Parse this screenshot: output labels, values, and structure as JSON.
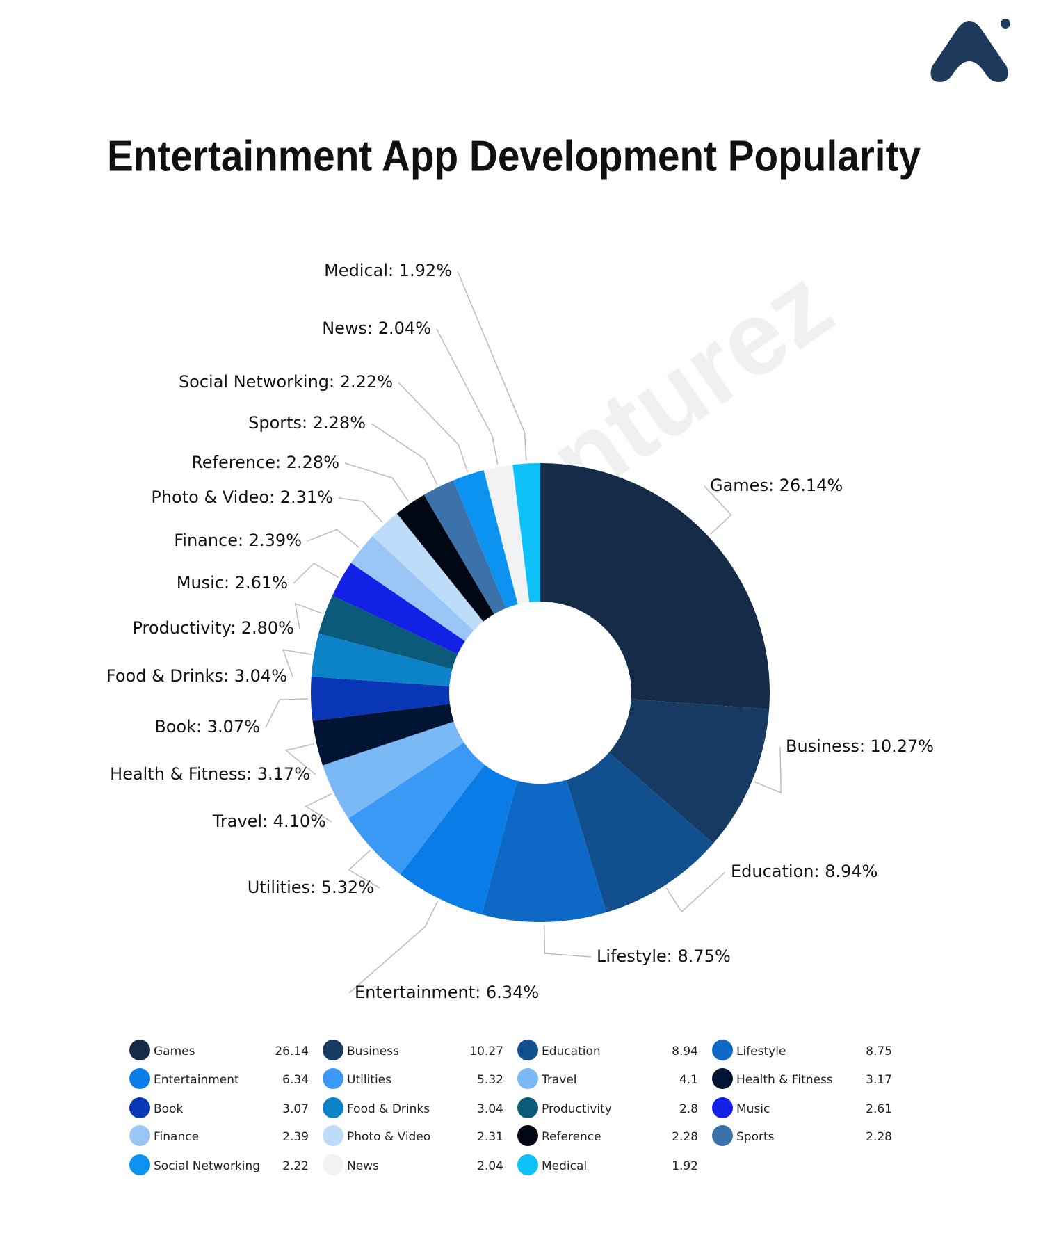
{
  "chart_data": {
    "type": "donut",
    "title": "Entertainment App Development Popularity",
    "watermark": "nturez",
    "categories": [
      "Games",
      "Business",
      "Education",
      "Lifestyle",
      "Entertainment",
      "Utilities",
      "Travel",
      "Health & Fitness",
      "Book",
      "Food & Drinks",
      "Productivity",
      "Music",
      "Finance",
      "Photo & Video",
      "Reference",
      "Sports",
      "Social Networking",
      "News",
      "Medical"
    ],
    "values": [
      26.14,
      10.27,
      8.94,
      8.75,
      6.34,
      5.32,
      4.1,
      3.17,
      3.07,
      3.04,
      2.8,
      2.61,
      2.39,
      2.31,
      2.28,
      2.28,
      2.22,
      2.04,
      1.92
    ],
    "value_labels": [
      "Games: 26.14%",
      "Business: 10.27%",
      "Education: 8.94%",
      "Lifestyle: 8.75%",
      "Entertainment: 6.34%",
      "Utilities: 5.32%",
      "Travel: 4.10%",
      "Health & Fitness: 3.17%",
      "Book: 3.07%",
      "Food & Drinks: 3.04%",
      "Productivity: 2.80%",
      "Music: 2.61%",
      "Finance: 2.39%",
      "Photo & Video: 2.31%",
      "Reference: 2.28%",
      "Sports: 2.28%",
      "Social Networking: 2.22%",
      "News: 2.04%",
      "Medical: 1.92%"
    ],
    "colors": [
      "#152b47",
      "#173b63",
      "#114f8f",
      "#0e69c6",
      "#0a7ce8",
      "#3a99f5",
      "#7ab8f6",
      "#021433",
      "#0836b7",
      "#0c82c8",
      "#0b5a7a",
      "#1320e6",
      "#99c6f5",
      "#bcdcfa",
      "#020813",
      "#3a72a9",
      "#0c93f2",
      "#f1f2f4",
      "#0ec2f7"
    ]
  }
}
